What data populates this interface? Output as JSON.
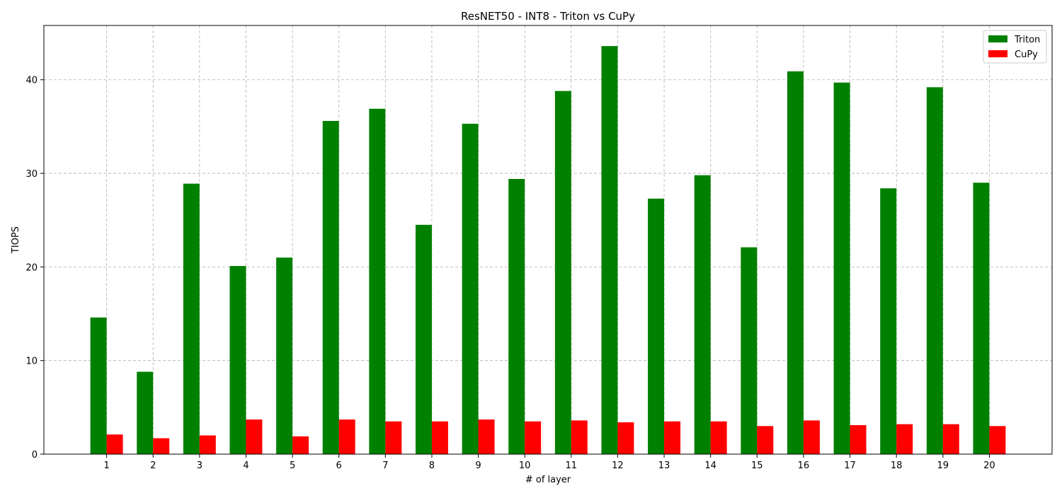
{
  "chart_data": {
    "type": "bar",
    "title": "ResNET50 - INT8 - Triton vs CuPy",
    "xlabel": "# of layer",
    "ylabel": "TIOPS",
    "categories": [
      "1",
      "2",
      "3",
      "4",
      "5",
      "6",
      "7",
      "8",
      "9",
      "10",
      "11",
      "12",
      "13",
      "14",
      "15",
      "16",
      "17",
      "18",
      "19",
      "20"
    ],
    "series": [
      {
        "name": "Triton",
        "color": "#008000",
        "values": [
          14.6,
          8.8,
          28.9,
          20.1,
          21.0,
          35.6,
          36.9,
          24.5,
          35.3,
          29.4,
          38.8,
          43.6,
          27.3,
          29.8,
          22.1,
          40.9,
          39.7,
          28.4,
          39.2,
          29.0
        ]
      },
      {
        "name": "CuPy",
        "color": "#ff0000",
        "values": [
          2.1,
          1.7,
          2.0,
          3.7,
          1.9,
          3.7,
          3.5,
          3.5,
          3.7,
          3.5,
          3.6,
          3.4,
          3.5,
          3.5,
          3.0,
          3.6,
          3.1,
          3.2,
          3.2,
          3.0
        ]
      }
    ],
    "ylim": [
      0,
      45.8
    ],
    "yticks": [
      0,
      10,
      20,
      30,
      40
    ],
    "grid": true,
    "legend": "top-right"
  }
}
